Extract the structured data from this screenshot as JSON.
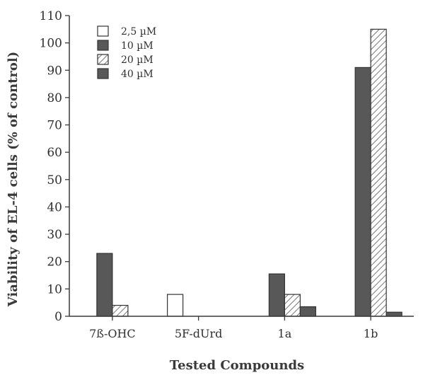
{
  "chart_data": {
    "type": "bar",
    "xlabel": "Tested Compounds",
    "ylabel": "Viability of EL-4 cells (% of control)",
    "ylim": [
      0,
      110
    ],
    "yticks": [
      0,
      10,
      20,
      30,
      40,
      50,
      60,
      70,
      80,
      90,
      100,
      110
    ],
    "categories": [
      "7ß-OHC",
      "5F-dUrd",
      "1a",
      "1b"
    ],
    "legend_position": "top-left",
    "series": [
      {
        "name": "2,5 µM",
        "style": "white",
        "values": [
          0,
          8,
          0,
          0
        ]
      },
      {
        "name": "10 µM",
        "style": "dark-gray",
        "values": [
          23,
          0,
          15.5,
          91
        ]
      },
      {
        "name": "20 µM",
        "style": "hatched",
        "values": [
          4,
          0,
          8,
          105
        ]
      },
      {
        "name": "40 µM",
        "style": "dark-gray",
        "values": [
          0,
          0,
          3.5,
          1.5
        ]
      }
    ]
  },
  "colors": {
    "axis": "#3a3a3a",
    "dark_fill": "#585858",
    "hatch": "#555555",
    "white_fill": "#ffffff"
  }
}
